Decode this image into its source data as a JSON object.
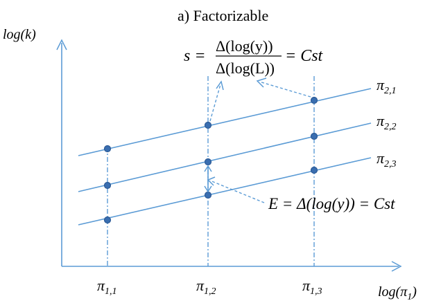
{
  "title": "a)  Factorizable",
  "axes": {
    "y_label": "log(k)",
    "x_label_main": "log(π",
    "x_label_sub": "1",
    "x_label_close": ")"
  },
  "x_ticks": [
    {
      "main": "π",
      "sub": "1,1"
    },
    {
      "main": "π",
      "sub": "1,2"
    },
    {
      "main": "π",
      "sub": "1,3"
    }
  ],
  "series_labels": [
    {
      "main": "π",
      "sub": "2,1"
    },
    {
      "main": "π",
      "sub": "2,2"
    },
    {
      "main": "π",
      "sub": "2,3"
    }
  ],
  "formula_s": {
    "lhs": "s =",
    "numerator": "Δ(log(y))",
    "denominator": "Δ(log(L))",
    "rhs": "= Cst"
  },
  "formula_e": {
    "text": "E = Δ(log(y)) = Cst"
  },
  "colors": {
    "lines": "#5b9bd5",
    "points": "#3a6eb0"
  }
}
